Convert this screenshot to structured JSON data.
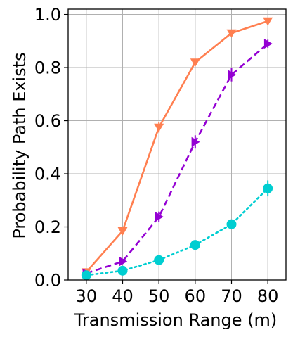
{
  "chart_data": {
    "type": "line",
    "title": "",
    "xlabel": "Transmission Range (m)",
    "ylabel": "Probability Path Exists",
    "x": [
      30,
      40,
      50,
      60,
      70,
      80
    ],
    "xlim": [
      25,
      85
    ],
    "ylim": [
      0,
      1.02
    ],
    "xticks": [
      "30",
      "40",
      "50",
      "60",
      "70",
      "80"
    ],
    "yticks": [
      "0.0",
      "0.2",
      "0.4",
      "0.6",
      "0.8",
      "1.0"
    ],
    "grid": true,
    "legend": false,
    "series": [
      {
        "color": "#ff7f50",
        "linestyle": "solid",
        "marker": "triangle-down",
        "values": [
          0.03,
          0.185,
          0.575,
          0.82,
          0.93,
          0.975
        ],
        "errors": [
          0.005,
          0.01,
          0.02,
          0.01,
          0.01,
          0.005
        ]
      },
      {
        "color": "#9400d3",
        "linestyle": "dashed",
        "marker": "triangle-right",
        "values": [
          0.025,
          0.07,
          0.238,
          0.52,
          0.773,
          0.89
        ],
        "errors": [
          0.005,
          0.01,
          0.02,
          0.025,
          0.025,
          0.015
        ]
      },
      {
        "color": "#00ced1",
        "linestyle": "dotted",
        "marker": "circle",
        "values": [
          0.018,
          0.035,
          0.075,
          0.132,
          0.21,
          0.345
        ],
        "errors": [
          0.005,
          0.005,
          0.01,
          0.01,
          0.015,
          0.03
        ]
      }
    ]
  }
}
